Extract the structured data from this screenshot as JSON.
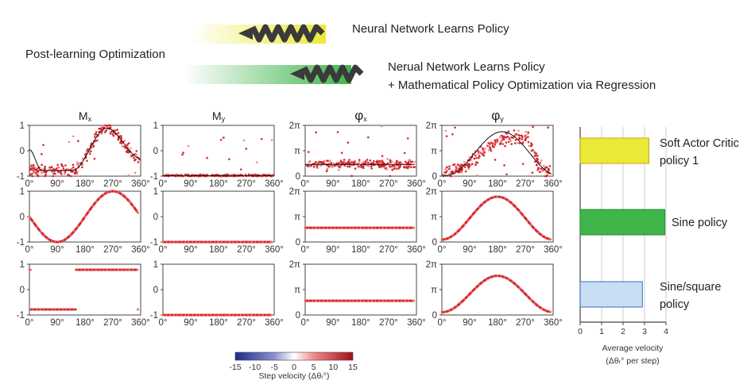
{
  "header": {
    "left_label": "Post-learning Optimization",
    "row1_label": "Neural Network Learns Policy",
    "row2_label_line1": "Nerual Network Learns Policy",
    "row2_label_line2": "+ Mathematical Policy Optimization via Regression"
  },
  "colors": {
    "yellow": "#e9ea36",
    "green": "#3fb54a",
    "light_blue": "#c7def5",
    "red": "#d6282e",
    "dark_blue": "#1f2a8a",
    "helix": "#3a3a3a"
  },
  "chart_data": [
    {
      "type": "scatter",
      "name": "policy-grid",
      "columns": [
        {
          "title_main": "M",
          "title_sub": "x",
          "yticks": [
            "1",
            "0",
            "-1"
          ],
          "ylim": [
            -1,
            1
          ]
        },
        {
          "title_main": "M",
          "title_sub": "y",
          "yticks": [
            "1",
            "0",
            "-1"
          ],
          "ylim": [
            -1,
            1
          ]
        },
        {
          "title_main": "φ",
          "title_sub": "x",
          "yticks": [
            "2π",
            "π",
            "0"
          ],
          "ylim": [
            0,
            6.283
          ]
        },
        {
          "title_main": "φ",
          "title_sub": "y",
          "yticks": [
            "2π",
            "π",
            "0"
          ],
          "ylim": [
            0,
            6.283
          ]
        }
      ],
      "rows": [
        "Soft Actor Critic policy 1",
        "Sine policy",
        "Sine/square policy"
      ],
      "xticks": [
        "0°",
        "90°",
        "180°",
        "270°",
        "360°"
      ],
      "xlim": [
        0,
        360
      ],
      "x_tick_values": [
        0,
        90,
        180,
        270,
        360
      ],
      "series_sine": {
        "Mx": "y = -sin(x)",
        "My": "y = -1",
        "phix": "y = 1.75",
        "phiy": "y = 2.95 - 2.65 cos(x)"
      },
      "series_sinesquare": {
        "Mx": {
          "segments": [
            [
              0,
              5,
              0.78
            ],
            [
              5,
              150,
              -0.78
            ],
            [
              150,
              180,
              0.78
            ],
            [
              180,
              350,
              0.78
            ],
            [
              350,
              352,
              -0.78
            ]
          ]
        },
        "My": "y = -1",
        "phix": "y = 1.75",
        "phiy": "y = 2.6 - 2.25 cos(x)"
      },
      "sac_fit": {
        "Mx": "smooth step from -0.78 (x<140) to 0.9 (x≈250), then falling",
        "My": "y ≈ -0.98",
        "phix": "y ≈ 1.5",
        "phiy": "y ≈ 2.9 - 2.4 cos(x)"
      },
      "colorbar": {
        "ticks": [
          "-15",
          "-10",
          "-5",
          "0",
          "5",
          "10",
          "15"
        ],
        "label": "Step velocity (Δθᵣ°)",
        "range": [
          -15,
          15
        ]
      }
    },
    {
      "type": "bar",
      "name": "average-velocity",
      "orientation": "horizontal",
      "categories": [
        "Soft Actor Critic policy 1",
        "Sine policy",
        "Sine/square policy"
      ],
      "category_lines": [
        [
          "Soft Actor Critic",
          "policy 1"
        ],
        [
          "Sine policy"
        ],
        [
          "Sine/square",
          "policy"
        ]
      ],
      "values": [
        3.2,
        3.95,
        2.9
      ],
      "bar_colors": [
        "#e9ea36",
        "#3fb54a",
        "#c7def5"
      ],
      "bar_edge": [
        "#d49a1e",
        "#2a8a35",
        "#3a6fb5"
      ],
      "xticks": [
        "0",
        "1",
        "2",
        "3",
        "4"
      ],
      "xlim": [
        0,
        4
      ],
      "xlabel_line1": "Average velocity",
      "xlabel_line2": "(Δθᵣ° per step)",
      "grid": true
    }
  ]
}
